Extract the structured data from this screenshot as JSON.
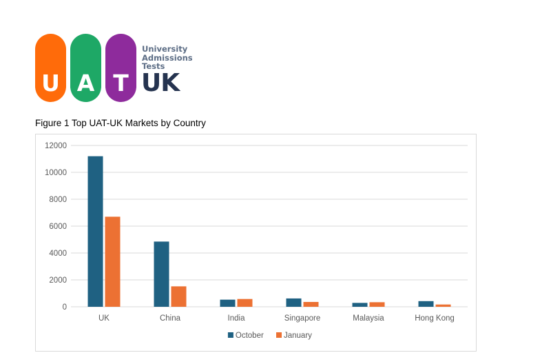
{
  "logo": {
    "letters": [
      "U",
      "A",
      "T"
    ],
    "colors": [
      "#ff6b0a",
      "#1ea866",
      "#8e2b9c"
    ],
    "subtitle_lines": [
      "University",
      "Admissions",
      "Tests"
    ],
    "country": "UK"
  },
  "figure_caption": "Figure 1 Top UAT-UK Markets by Country",
  "chart_data": {
    "type": "bar",
    "title": "",
    "xlabel": "",
    "ylabel": "",
    "categories": [
      "UK",
      "China",
      "India",
      "Singapore",
      "Malaysia",
      "Hong Kong"
    ],
    "series": [
      {
        "name": "October",
        "color": "#1f6182",
        "values": [
          11200,
          4850,
          530,
          620,
          290,
          420
        ]
      },
      {
        "name": "January",
        "color": "#ec7133",
        "values": [
          6700,
          1520,
          580,
          360,
          340,
          170
        ]
      }
    ],
    "ylim": [
      0,
      12000
    ],
    "yticks": [
      0,
      2000,
      4000,
      6000,
      8000,
      10000,
      12000
    ],
    "grid": true,
    "legend_position": "bottom"
  }
}
